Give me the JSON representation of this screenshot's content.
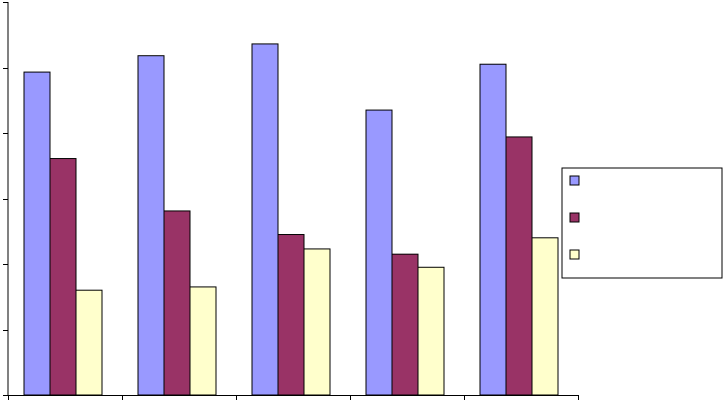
{
  "chart_data": {
    "type": "bar",
    "categories": [
      "",
      "",
      "",
      "",
      ""
    ],
    "series": [
      {
        "values": [
          49.3,
          51.8,
          53.6,
          43.5,
          50.5
        ],
        "color": "#9999ff"
      },
      {
        "values": [
          36.1,
          28.1,
          24.5,
          21.5,
          39.4
        ],
        "color": "#993366"
      },
      {
        "values": [
          16.0,
          16.5,
          22.3,
          19.5,
          24.0
        ],
        "color": "#ffffcc"
      }
    ],
    "ylim": [
      0,
      60
    ],
    "yticks": [
      0,
      10,
      20,
      30,
      40,
      50,
      60
    ],
    "grid": false,
    "legend_position": "right",
    "title": "",
    "xlabel": "",
    "ylabel": ""
  }
}
